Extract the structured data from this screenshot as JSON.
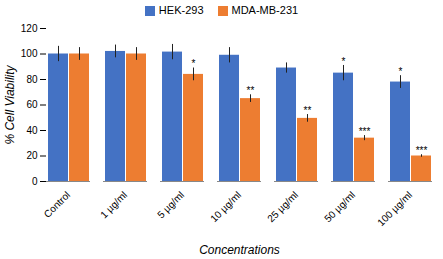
{
  "chart_data": {
    "type": "bar",
    "categories": [
      "Control",
      "1 µg/ml",
      "5 µg/ml",
      "10 µg/ml",
      "25 µg/ml",
      "50 µg/ml",
      "100 µg/ml"
    ],
    "series": [
      {
        "name": "HEK-293",
        "color": "#4472c4",
        "values": [
          100,
          102,
          101.5,
          99,
          89,
          85,
          78
        ],
        "errors": [
          6,
          5,
          6,
          6,
          4,
          6,
          5
        ],
        "significance": [
          null,
          null,
          null,
          null,
          null,
          "*",
          "*"
        ]
      },
      {
        "name": "MDA-MB-231",
        "color": "#ed7d31",
        "values": [
          100,
          100,
          84,
          65,
          49.5,
          34,
          20
        ],
        "errors": [
          5,
          5,
          5,
          3,
          3,
          2,
          1
        ],
        "significance": [
          null,
          null,
          "*",
          "**",
          "**",
          "***",
          "***"
        ]
      }
    ],
    "x_label": "Concentrations",
    "y_label": "% Cell Viability",
    "ylim": [
      0,
      120
    ],
    "yticks": [
      0,
      20,
      40,
      60,
      80,
      100,
      120
    ],
    "grid": false,
    "legend": "top"
  }
}
